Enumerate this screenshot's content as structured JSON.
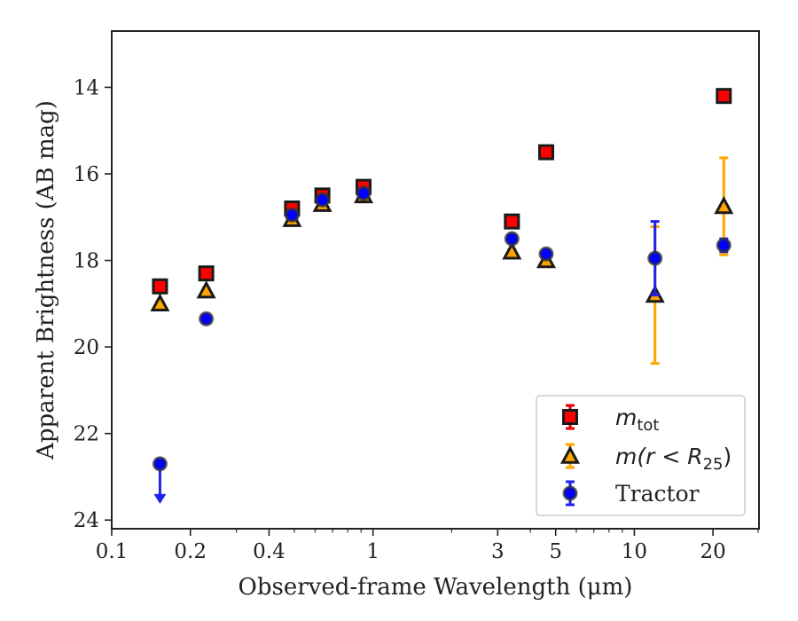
{
  "chart_data": {
    "type": "scatter",
    "xlabel": "Observed-frame Wavelength (μm)",
    "ylabel": "Apparent Brightness (AB mag)",
    "xscale": "log",
    "xlim": [
      0.1,
      30
    ],
    "ylim": [
      24.2,
      12.7
    ],
    "y_inverted": true,
    "x_ticks": [
      0.1,
      0.2,
      0.4,
      1,
      3,
      5,
      10,
      20
    ],
    "x_tick_labels": [
      "0.1",
      "0.2",
      "0.4",
      "1",
      "3",
      "5",
      "10",
      "20"
    ],
    "y_ticks": [
      14,
      16,
      18,
      20,
      22,
      24
    ],
    "y_tick_labels": [
      "14",
      "16",
      "18",
      "20",
      "22",
      "24"
    ],
    "legend_position": "lower-right",
    "series": [
      {
        "name": "m_tot",
        "label_main": "m",
        "label_sub": "tot",
        "marker": "square",
        "color": "#ff0000",
        "points": [
          {
            "x": 0.153,
            "y": 18.6,
            "err": 0.07
          },
          {
            "x": 0.23,
            "y": 18.3,
            "err": 0.05
          },
          {
            "x": 0.49,
            "y": 16.8,
            "err": 0.04
          },
          {
            "x": 0.64,
            "y": 16.5,
            "err": 0.04
          },
          {
            "x": 0.92,
            "y": 16.3,
            "err": 0.04
          },
          {
            "x": 3.4,
            "y": 17.1,
            "err": 0.03
          },
          {
            "x": 4.6,
            "y": 15.5,
            "err": 0.03
          },
          {
            "x": 22,
            "y": 14.2,
            "err": 0.05
          }
        ]
      },
      {
        "name": "m(r < R_25)",
        "label_main": "m(r < R",
        "label_sub": "25",
        "label_end": ")",
        "marker": "triangle",
        "color": "#ffa500",
        "points": [
          {
            "x": 0.153,
            "y": 19.0,
            "err": 0.05
          },
          {
            "x": 0.23,
            "y": 18.7,
            "err": 0.05
          },
          {
            "x": 0.49,
            "y": 17.05,
            "err": 0.03
          },
          {
            "x": 0.64,
            "y": 16.7,
            "err": 0.03
          },
          {
            "x": 0.92,
            "y": 16.5,
            "err": 0.03
          },
          {
            "x": 3.4,
            "y": 17.8,
            "err": 0.05
          },
          {
            "x": 4.6,
            "y": 18.0,
            "err": 0.05
          },
          {
            "x": 12,
            "y": 18.8,
            "err": 1.58
          },
          {
            "x": 22,
            "y": 16.75,
            "err": 1.12
          }
        ]
      },
      {
        "name": "Tractor",
        "marker": "circle",
        "color": "#0000ff",
        "points": [
          {
            "x": 0.153,
            "y": 22.7,
            "upper_limit": true
          },
          {
            "x": 0.23,
            "y": 19.35,
            "err": 0.05
          },
          {
            "x": 0.49,
            "y": 16.95,
            "err": 0.03
          },
          {
            "x": 0.64,
            "y": 16.6,
            "err": 0.03
          },
          {
            "x": 0.92,
            "y": 16.45,
            "err": 0.03
          },
          {
            "x": 3.4,
            "y": 17.5,
            "err": 0.05
          },
          {
            "x": 4.6,
            "y": 17.85,
            "err": 0.05
          },
          {
            "x": 12,
            "y": 17.95,
            "err": 0.85
          },
          {
            "x": 22,
            "y": 17.65,
            "err": 0.15
          }
        ]
      }
    ]
  }
}
